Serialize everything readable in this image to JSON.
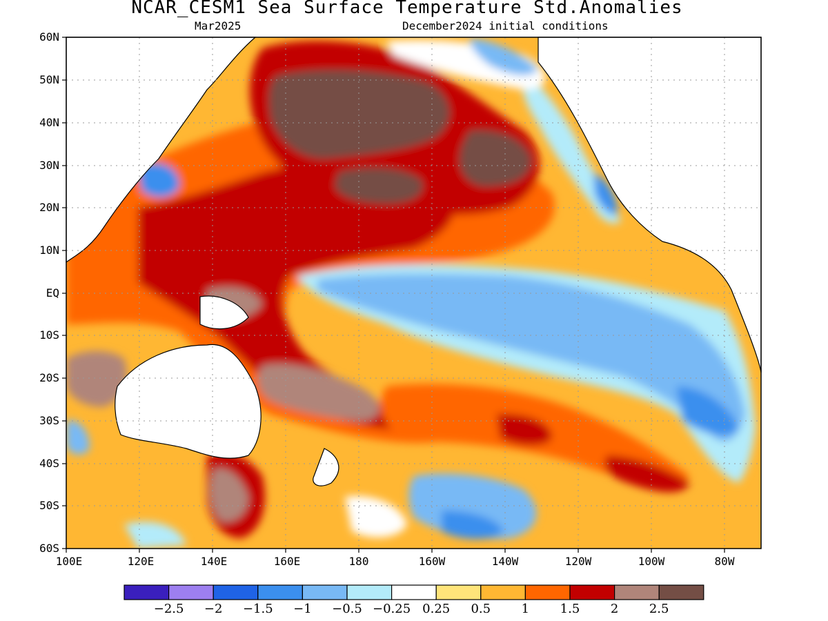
{
  "title": "NCAR_CESM1 Sea Surface Temperature Std.Anomalies",
  "subtitle_left": "Mar2025",
  "subtitle_right": "December2024 initial conditions",
  "map": {
    "lat_labels": [
      "60N",
      "50N",
      "40N",
      "30N",
      "20N",
      "10N",
      "EQ",
      "10S",
      "20S",
      "30S",
      "40S",
      "50S",
      "60S"
    ],
    "lon_labels": [
      "100E",
      "120E",
      "140E",
      "160E",
      "180",
      "160W",
      "140W",
      "120W",
      "100W",
      "80W"
    ],
    "lat_range": [
      -60,
      60
    ],
    "lon_range_east": [
      100,
      290
    ],
    "gridlines": true
  },
  "colorbar": {
    "colors": [
      "#3a1fbd",
      "#9d7ff0",
      "#1f63e6",
      "#3b8fee",
      "#78b9f5",
      "#b3ebfa",
      "#ffffff",
      "#ffe47a",
      "#ffb733",
      "#ff6600",
      "#c20000",
      "#b0857a",
      "#744e45"
    ],
    "labels": [
      "-2.5",
      "-2",
      "-1.5",
      "-1",
      "-0.5",
      "-0.25",
      "0.25",
      "0.5",
      "1",
      "1.5",
      "2",
      "2.5"
    ]
  }
}
